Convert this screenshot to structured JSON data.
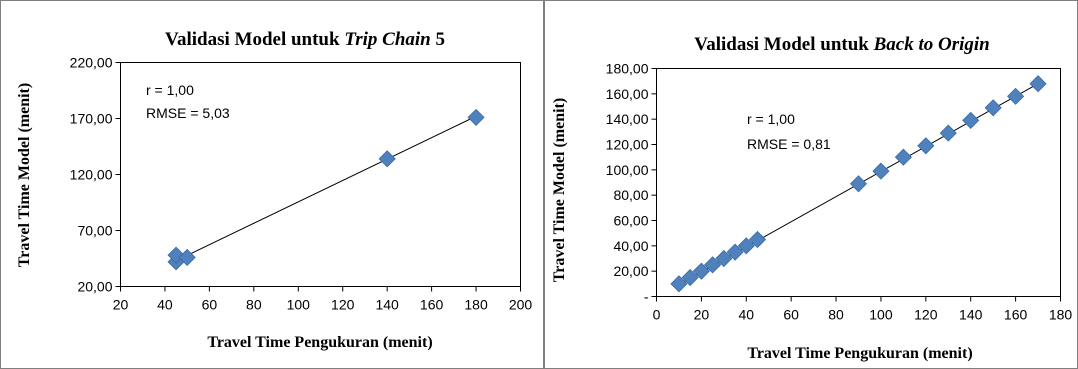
{
  "chart_data": [
    {
      "type": "scatter",
      "title_prefix": "Validasi Model untuk ",
      "title_italic": "Trip Chain",
      "title_suffix": " 5",
      "xlabel": "Travel Time Pengukuran (menit)",
      "ylabel": "Travel Time Model (menit)",
      "xlim": [
        20,
        200
      ],
      "ylim": [
        20,
        220
      ],
      "xticks": [
        20,
        40,
        60,
        80,
        100,
        120,
        140,
        160,
        180,
        200
      ],
      "yticks": [
        20,
        70,
        120,
        170,
        220
      ],
      "xtick_labels": [
        "20",
        "40",
        "60",
        "80",
        "100",
        "120",
        "140",
        "160",
        "180",
        "200"
      ],
      "ytick_labels": [
        "20,00",
        "70,00",
        "120,00",
        "170,00",
        "220,00"
      ],
      "points": [
        {
          "x": 45,
          "y": 42
        },
        {
          "x": 45,
          "y": 48
        },
        {
          "x": 50,
          "y": 46
        },
        {
          "x": 140,
          "y": 134
        },
        {
          "x": 180,
          "y": 171
        }
      ],
      "trendline": [
        {
          "x": 45,
          "y": 43
        },
        {
          "x": 180,
          "y": 172
        }
      ],
      "annotations": [
        "r = 1,00",
        "RMSE = 5,03"
      ],
      "marker_color": "#4f81bd",
      "grid": false
    },
    {
      "type": "scatter",
      "title_prefix": "Validasi Model untuk ",
      "title_italic": "Back to Origin",
      "title_suffix": "",
      "xlabel": "Travel Time Pengukuran (menit)",
      "ylabel": "Travel Time Model (menit)",
      "xlim": [
        0,
        180
      ],
      "ylim": [
        0,
        180
      ],
      "xticks": [
        0,
        20,
        40,
        60,
        80,
        100,
        120,
        140,
        160,
        180
      ],
      "yticks": [
        0,
        20,
        40,
        60,
        80,
        100,
        120,
        140,
        160,
        180
      ],
      "xtick_labels": [
        "0",
        "20",
        "40",
        "60",
        "80",
        "100",
        "120",
        "140",
        "160",
        "180"
      ],
      "ytick_labels": [
        "-",
        "20,00",
        "40,00",
        "60,00",
        "80,00",
        "100,00",
        "120,00",
        "140,00",
        "160,00",
        "180,00"
      ],
      "points": [
        {
          "x": 10,
          "y": 10
        },
        {
          "x": 15,
          "y": 15
        },
        {
          "x": 20,
          "y": 20
        },
        {
          "x": 25,
          "y": 25
        },
        {
          "x": 30,
          "y": 30
        },
        {
          "x": 35,
          "y": 35
        },
        {
          "x": 40,
          "y": 40
        },
        {
          "x": 45,
          "y": 45
        },
        {
          "x": 90,
          "y": 89
        },
        {
          "x": 100,
          "y": 99
        },
        {
          "x": 110,
          "y": 110
        },
        {
          "x": 120,
          "y": 119
        },
        {
          "x": 130,
          "y": 129
        },
        {
          "x": 140,
          "y": 139
        },
        {
          "x": 150,
          "y": 149
        },
        {
          "x": 160,
          "y": 158
        },
        {
          "x": 170,
          "y": 168
        }
      ],
      "trendline": [
        {
          "x": 10,
          "y": 9.5
        },
        {
          "x": 170,
          "y": 168
        }
      ],
      "annotations": [
        "r = 1,00",
        "RMSE = 0,81"
      ],
      "marker_color": "#4f81bd",
      "grid": false
    }
  ]
}
